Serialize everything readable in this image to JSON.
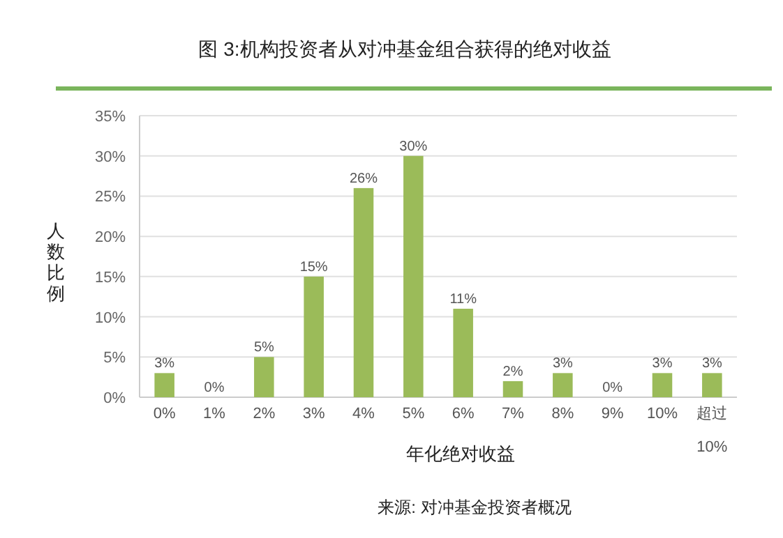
{
  "chart_data": {
    "type": "bar",
    "title": "图 3:机构投资者从对冲基金组合获得的绝对收益",
    "xlabel": "年化绝对收益",
    "ylabel": "人数比例",
    "categories": [
      "0%",
      "1%",
      "2%",
      "3%",
      "4%",
      "5%",
      "6%",
      "7%",
      "8%",
      "9%",
      "10%",
      "超过 10%"
    ],
    "values": [
      3,
      0,
      5,
      15,
      26,
      30,
      11,
      2,
      3,
      0,
      3,
      3
    ],
    "color": "#9bbb59",
    "ylim": [
      0,
      35
    ],
    "yticks": [
      {
        "value": 0,
        "label": "0%"
      },
      {
        "value": 5,
        "label": "5%"
      },
      {
        "value": 10,
        "label": "10%"
      },
      {
        "value": 15,
        "label": "15%"
      },
      {
        "value": 20,
        "label": "20%"
      },
      {
        "value": 25,
        "label": "25%"
      },
      {
        "value": 30,
        "label": "30%"
      },
      {
        "value": 35,
        "label": "35%"
      }
    ],
    "value_labels": [
      "3%",
      "0%",
      "5%",
      "15%",
      "26%",
      "30%",
      "11%",
      "2%",
      "3%",
      "0%",
      "3%",
      "3%"
    ],
    "grid": "y",
    "annotations": [
      "来源: 对冲基金投资者概况"
    ]
  }
}
